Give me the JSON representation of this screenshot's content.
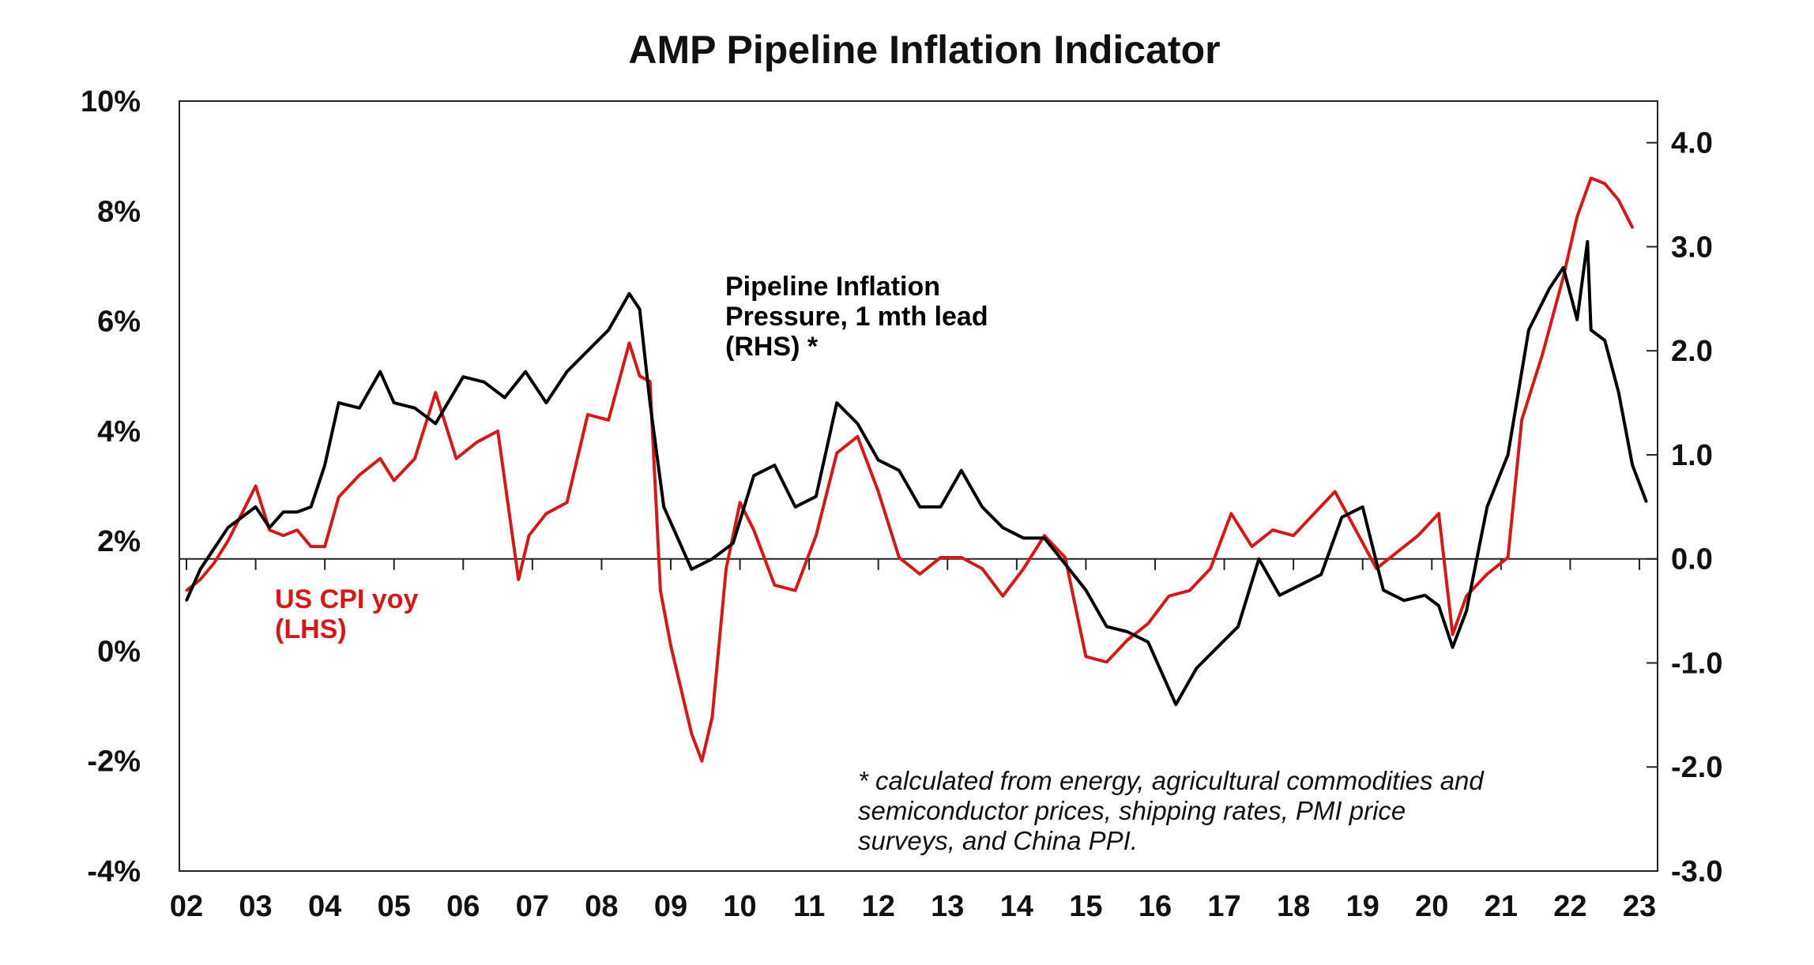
{
  "chart_data": {
    "type": "line",
    "title": "AMP Pipeline Inflation Indicator",
    "x_tick_labels": [
      "02",
      "03",
      "04",
      "05",
      "06",
      "07",
      "08",
      "09",
      "10",
      "11",
      "12",
      "13",
      "14",
      "15",
      "16",
      "17",
      "18",
      "19",
      "20",
      "21",
      "22",
      "23"
    ],
    "x_range": [
      2002,
      2023.2
    ],
    "y_left": {
      "range": [
        -4,
        10
      ],
      "tick_labels": [
        "10%",
        "8%",
        "6%",
        "4%",
        "2%",
        "0%",
        "-2%",
        "-4%"
      ],
      "tick_values": [
        10,
        8,
        6,
        4,
        2,
        0,
        -2,
        -4
      ]
    },
    "y_right": {
      "range": [
        -3.0,
        4.4
      ],
      "tick_labels": [
        "4.0",
        "3.0",
        "2.0",
        "1.0",
        "0.0",
        "-1.0",
        "-2.0",
        "-3.0"
      ],
      "tick_values": [
        4,
        3,
        2,
        1,
        0,
        -1,
        -2,
        -3
      ]
    },
    "zero_line_right": 0.0,
    "grid": false,
    "legend": "none",
    "colors": {
      "pipeline": "#000000",
      "cpi": "#d11a1a",
      "axis": "#222222",
      "text": "#111111"
    },
    "series": [
      {
        "name": "Pipeline Inflation Pressure, 1 mth lead (RHS) *",
        "axis": "right",
        "label_lines": [
          "Pipeline Inflation",
          "Pressure, 1 mth lead",
          "(RHS) *"
        ],
        "x": [
          2002.0,
          2002.2,
          2002.4,
          2002.6,
          2002.8,
          2003.0,
          2003.2,
          2003.4,
          2003.6,
          2003.8,
          2004.0,
          2004.2,
          2004.5,
          2004.8,
          2005.0,
          2005.3,
          2005.6,
          2006.0,
          2006.3,
          2006.6,
          2006.9,
          2007.2,
          2007.5,
          2007.8,
          2008.1,
          2008.4,
          2008.55,
          2008.7,
          2008.9,
          2009.1,
          2009.3,
          2009.6,
          2009.9,
          2010.2,
          2010.5,
          2010.8,
          2011.1,
          2011.4,
          2011.7,
          2012.0,
          2012.3,
          2012.6,
          2012.9,
          2013.2,
          2013.5,
          2013.8,
          2014.1,
          2014.4,
          2014.7,
          2015.0,
          2015.3,
          2015.6,
          2015.9,
          2016.1,
          2016.3,
          2016.6,
          2016.9,
          2017.2,
          2017.5,
          2017.8,
          2018.1,
          2018.4,
          2018.7,
          2019.0,
          2019.3,
          2019.6,
          2019.9,
          2020.1,
          2020.3,
          2020.5,
          2020.8,
          2021.1,
          2021.4,
          2021.7,
          2021.9,
          2022.1,
          2022.25,
          2022.3,
          2022.5,
          2022.7,
          2022.9,
          2023.1
        ],
        "y": [
          -0.4,
          -0.1,
          0.1,
          0.3,
          0.4,
          0.5,
          0.3,
          0.45,
          0.45,
          0.5,
          0.9,
          1.5,
          1.45,
          1.8,
          1.5,
          1.45,
          1.3,
          1.75,
          1.7,
          1.55,
          1.8,
          1.5,
          1.8,
          2.0,
          2.2,
          2.55,
          2.4,
          1.5,
          0.5,
          0.2,
          -0.1,
          0.0,
          0.15,
          0.8,
          0.9,
          0.5,
          0.6,
          1.5,
          1.3,
          0.95,
          0.85,
          0.5,
          0.5,
          0.85,
          0.5,
          0.3,
          0.2,
          0.2,
          -0.05,
          -0.3,
          -0.65,
          -0.7,
          -0.8,
          -1.1,
          -1.4,
          -1.05,
          -0.85,
          -0.65,
          0.0,
          -0.35,
          -0.25,
          -0.15,
          0.4,
          0.5,
          -0.3,
          -0.4,
          -0.35,
          -0.45,
          -0.85,
          -0.5,
          0.5,
          1.0,
          2.2,
          2.6,
          2.8,
          2.3,
          3.05,
          2.2,
          2.1,
          1.6,
          0.9,
          0.55
        ]
      },
      {
        "name": "US CPI yoy (LHS)",
        "axis": "left",
        "label_lines": [
          "US CPI yoy",
          "(LHS)"
        ],
        "x": [
          2002.0,
          2002.2,
          2002.4,
          2002.6,
          2002.8,
          2003.0,
          2003.2,
          2003.4,
          2003.6,
          2003.8,
          2004.0,
          2004.2,
          2004.5,
          2004.8,
          2005.0,
          2005.3,
          2005.6,
          2005.9,
          2006.2,
          2006.5,
          2006.8,
          2006.95,
          2007.2,
          2007.5,
          2007.8,
          2008.1,
          2008.4,
          2008.55,
          2008.7,
          2008.85,
          2009.0,
          2009.3,
          2009.45,
          2009.6,
          2009.8,
          2010.0,
          2010.2,
          2010.5,
          2010.8,
          2011.1,
          2011.4,
          2011.7,
          2012.0,
          2012.3,
          2012.6,
          2012.9,
          2013.2,
          2013.5,
          2013.8,
          2014.1,
          2014.4,
          2014.7,
          2015.0,
          2015.3,
          2015.6,
          2015.9,
          2016.2,
          2016.5,
          2016.8,
          2017.1,
          2017.4,
          2017.7,
          2018.0,
          2018.3,
          2018.6,
          2018.9,
          2019.2,
          2019.5,
          2019.8,
          2020.1,
          2020.3,
          2020.5,
          2020.8,
          2021.1,
          2021.3,
          2021.6,
          2021.9,
          2022.1,
          2022.3,
          2022.5,
          2022.7,
          2022.9
        ],
        "y": [
          1.1,
          1.3,
          1.6,
          2.0,
          2.5,
          3.0,
          2.2,
          2.1,
          2.2,
          1.9,
          1.9,
          2.8,
          3.2,
          3.5,
          3.1,
          3.5,
          4.7,
          3.5,
          3.8,
          4.0,
          1.3,
          2.1,
          2.5,
          2.7,
          4.3,
          4.2,
          5.6,
          5.0,
          4.9,
          1.1,
          0.1,
          -1.5,
          -2.0,
          -1.2,
          1.5,
          2.7,
          2.2,
          1.2,
          1.1,
          2.1,
          3.6,
          3.9,
          2.9,
          1.7,
          1.4,
          1.7,
          1.7,
          1.5,
          1.0,
          1.5,
          2.1,
          1.7,
          -0.1,
          -0.2,
          0.2,
          0.5,
          1.0,
          1.1,
          1.5,
          2.5,
          1.9,
          2.2,
          2.1,
          2.5,
          2.9,
          2.2,
          1.5,
          1.8,
          2.1,
          2.5,
          0.3,
          1.0,
          1.4,
          1.7,
          4.2,
          5.4,
          6.8,
          7.9,
          8.6,
          8.5,
          8.2,
          7.7
        ]
      }
    ],
    "annotation_lines": [
      "* calculated from energy, agricultural commodities and",
      "semiconductor prices, shipping rates, PMI price",
      "surveys, and China PPI."
    ]
  }
}
